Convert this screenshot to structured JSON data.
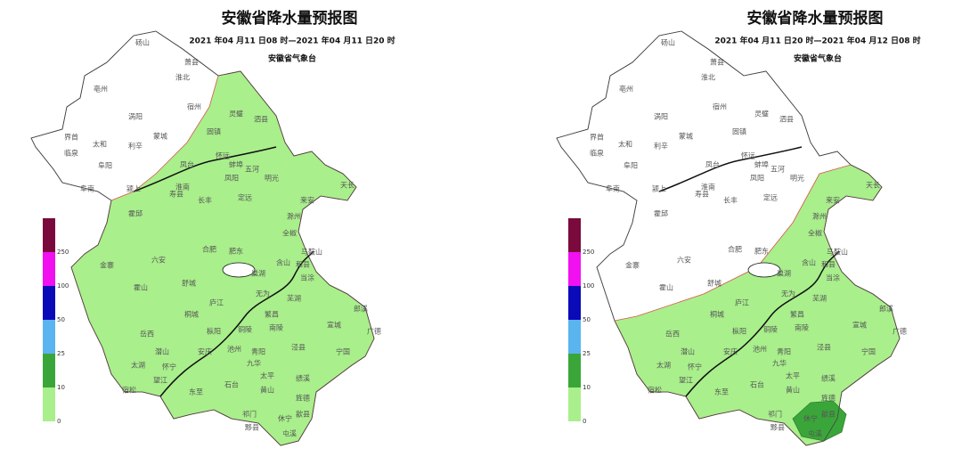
{
  "maps": [
    {
      "title": "安徽省降水量预报图",
      "subtitle": "2021 年04 月11 日08 时—2021 年04 月11 日20 时",
      "issuer": "安徽省气象台"
    },
    {
      "title": "安徽省降水量预报图",
      "subtitle": "2021 年04 月11 日20 时—2021 年04 月12 日08 时",
      "issuer": "安徽省气象台"
    }
  ],
  "legend": {
    "levels": [
      0,
      10,
      25,
      50,
      100,
      250
    ],
    "colors": [
      "#a9ef8c",
      "#3aa63a",
      "#5ab4ef",
      "#0a0ab8",
      "#f010f0",
      "#7a0a3c"
    ]
  },
  "cities": [
    "砀山",
    "萧县",
    "淮北",
    "亳州",
    "涡阳",
    "宿州",
    "灵璧",
    "泗县",
    "蒙城",
    "固镇",
    "界首",
    "太和",
    "利辛",
    "临泉",
    "阜阳",
    "怀远",
    "五河",
    "蚌埠",
    "凤台",
    "明光",
    "阜南",
    "颍上",
    "淮南",
    "凤阳",
    "天长",
    "霍邱",
    "寿县",
    "长丰",
    "定远",
    "来安",
    "滁州",
    "全椒",
    "金寨",
    "六安",
    "合肥",
    "肥东",
    "巢湖",
    "含山",
    "和县",
    "马鞍山",
    "当涂",
    "霍山",
    "舒城",
    "庐江",
    "无为",
    "芜湖",
    "繁昌",
    "南陵",
    "宣城",
    "郎溪",
    "广德",
    "岳西",
    "潜山",
    "桐城",
    "枞阳",
    "铜陵",
    "青阳",
    "泾县",
    "宁国",
    "太湖",
    "怀宁",
    "安庆",
    "池州",
    "九华",
    "宿松",
    "望江",
    "东至",
    "石台",
    "太平",
    "黄山",
    "旌德",
    "绩溪",
    "祁门",
    "黟县",
    "歙县",
    "休宁",
    "屯溪"
  ]
}
